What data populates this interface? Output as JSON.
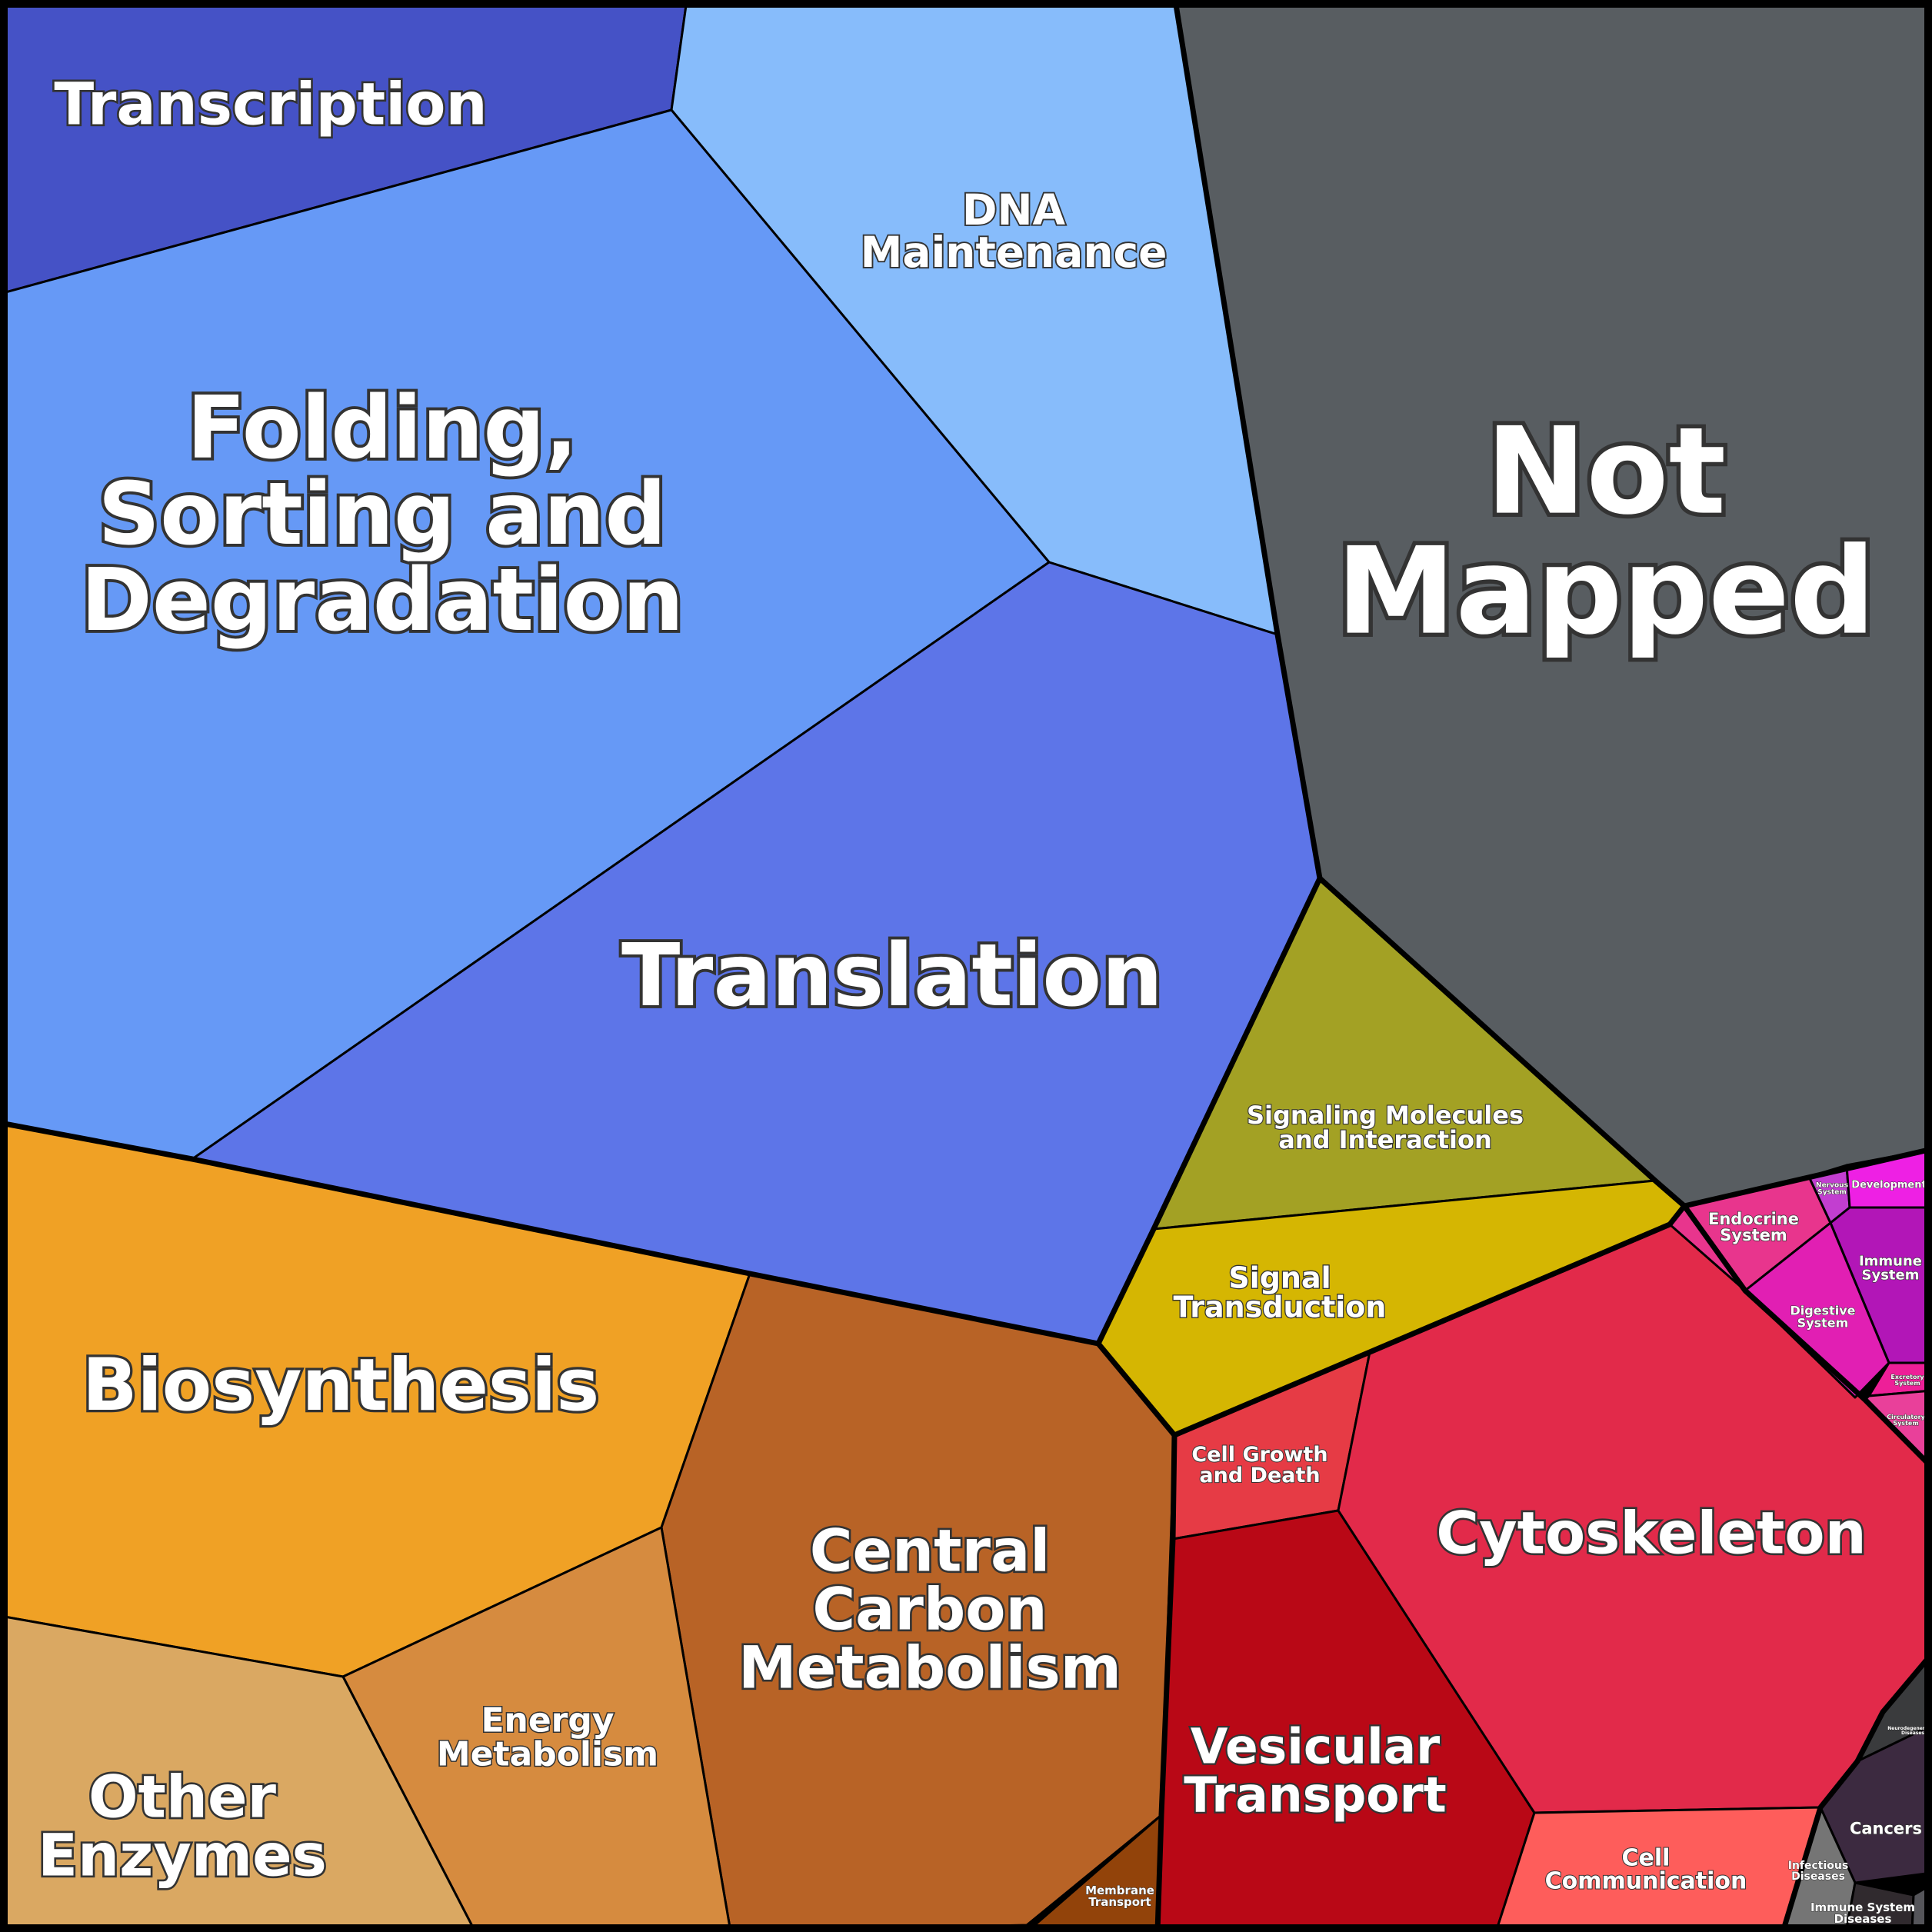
{
  "cells": [
    {
      "id": "transcription",
      "label": [
        "Transcription"
      ],
      "color": "#4552c6"
    },
    {
      "id": "dna-maintenance",
      "label": [
        "DNA",
        "Maintenance"
      ],
      "color": "#87bcfb"
    },
    {
      "id": "folding-sorting-degradation",
      "label": [
        "Folding,",
        "Sorting and",
        "Degradation"
      ],
      "color": "#6699f6"
    },
    {
      "id": "not-mapped",
      "label": [
        "Not",
        "Mapped"
      ],
      "color": "#585d61"
    },
    {
      "id": "translation",
      "label": [
        "Translation"
      ],
      "color": "#5d75e8"
    },
    {
      "id": "signaling-molecules",
      "label": [
        "Signaling Molecules",
        "and Interaction"
      ],
      "color": "#a3a124"
    },
    {
      "id": "signal-transduction",
      "label": [
        "Signal",
        "Transduction"
      ],
      "color": "#d5b602"
    },
    {
      "id": "biosynthesis",
      "label": [
        "Biosynthesis"
      ],
      "color": "#f0a125"
    },
    {
      "id": "central-carbon-metabolism",
      "label": [
        "Central",
        "Carbon",
        "Metabolism"
      ],
      "color": "#b86326"
    },
    {
      "id": "energy-metabolism",
      "label": [
        "Energy",
        "Metabolism"
      ],
      "color": "#d68b3f"
    },
    {
      "id": "other-enzymes",
      "label": [
        "Other",
        "Enzymes"
      ],
      "color": "#daa862"
    },
    {
      "id": "membrane-transport",
      "label": [
        "Membrane",
        "Transport"
      ],
      "color": "#92430a"
    },
    {
      "id": "cell-growth-death",
      "label": [
        "Cell Growth",
        "and Death"
      ],
      "color": "#e63b45"
    },
    {
      "id": "vesicular-transport",
      "label": [
        "Vesicular",
        "Transport"
      ],
      "color": "#b90816"
    },
    {
      "id": "cytoskeleton",
      "label": [
        "Cytoskeleton"
      ],
      "color": "#e22a4a"
    },
    {
      "id": "cell-communication",
      "label": [
        "Cell",
        "Communication"
      ],
      "color": "#fe5d5b"
    },
    {
      "id": "endocrine-system",
      "label": [
        "Endocrine",
        "System"
      ],
      "color": "#e8358d"
    },
    {
      "id": "nervous-system",
      "label": [
        "Nervous",
        "System"
      ],
      "color": "#c23ed0"
    },
    {
      "id": "development",
      "label": [
        "Development"
      ],
      "color": "#ee20e4"
    },
    {
      "id": "immune-system",
      "label": [
        "Immune",
        "System"
      ],
      "color": "#b216b7"
    },
    {
      "id": "digestive-system",
      "label": [
        "Digestive",
        "System"
      ],
      "color": "#e11fb3"
    },
    {
      "id": "excretory-system",
      "label": [
        "Excretory",
        "System"
      ],
      "color": "#ee1f98"
    },
    {
      "id": "circulatory-system",
      "label": [
        "Circulatory",
        "System"
      ],
      "color": "#e9409a"
    },
    {
      "id": "neurodegenerative-diseases",
      "label": [
        "Neurodegenerative",
        "Diseases"
      ],
      "color": "#3a3b3d"
    },
    {
      "id": "cancers",
      "label": [
        "Cancers"
      ],
      "color": "#3c2a40"
    },
    {
      "id": "infectious-diseases",
      "label": [
        "Infectious",
        "Diseases"
      ],
      "color": "#757575"
    },
    {
      "id": "immune-system-diseases",
      "label": [
        "Immune System",
        "Diseases"
      ],
      "color": "#302a2e"
    },
    {
      "id": "sliver-disease",
      "label": [],
      "color": "#55555a"
    }
  ]
}
